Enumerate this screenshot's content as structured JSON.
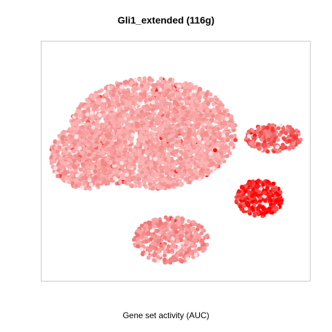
{
  "chart_data": {
    "type": "scatter",
    "title": "Gli1_extended (116g)",
    "caption": "Gene set activity (AUC)",
    "xlabel": "",
    "ylabel": "",
    "axes_visible": false,
    "grid": false,
    "legend": "none",
    "colors": {
      "low": "#fbb4b4",
      "mid": "#f07a7a",
      "high": "#ff0000",
      "faint": "#fde0e0",
      "frame": "#c8c8c8"
    },
    "clusters": [
      {
        "name": "main",
        "x": [
          -12,
          6
        ],
        "y": [
          -3,
          9
        ],
        "n": 3200,
        "activity": 0.12
      },
      {
        "name": "left-lobe",
        "x": [
          -14,
          -6
        ],
        "y": [
          -3,
          4
        ],
        "n": 900,
        "activity": 0.16
      },
      {
        "name": "bottom",
        "x": [
          -5,
          3
        ],
        "y": [
          -11,
          -6
        ],
        "n": 450,
        "activity": 0.3
      },
      {
        "name": "right-upper",
        "x": [
          7,
          13
        ],
        "y": [
          1,
          4
        ],
        "n": 220,
        "activity": 0.55
      },
      {
        "name": "right-lower",
        "x": [
          6,
          11
        ],
        "y": [
          -6,
          -2
        ],
        "n": 260,
        "activity": 0.85
      }
    ],
    "xlim": [
      -15,
      14
    ],
    "ylim": [
      -13,
      13
    ]
  }
}
